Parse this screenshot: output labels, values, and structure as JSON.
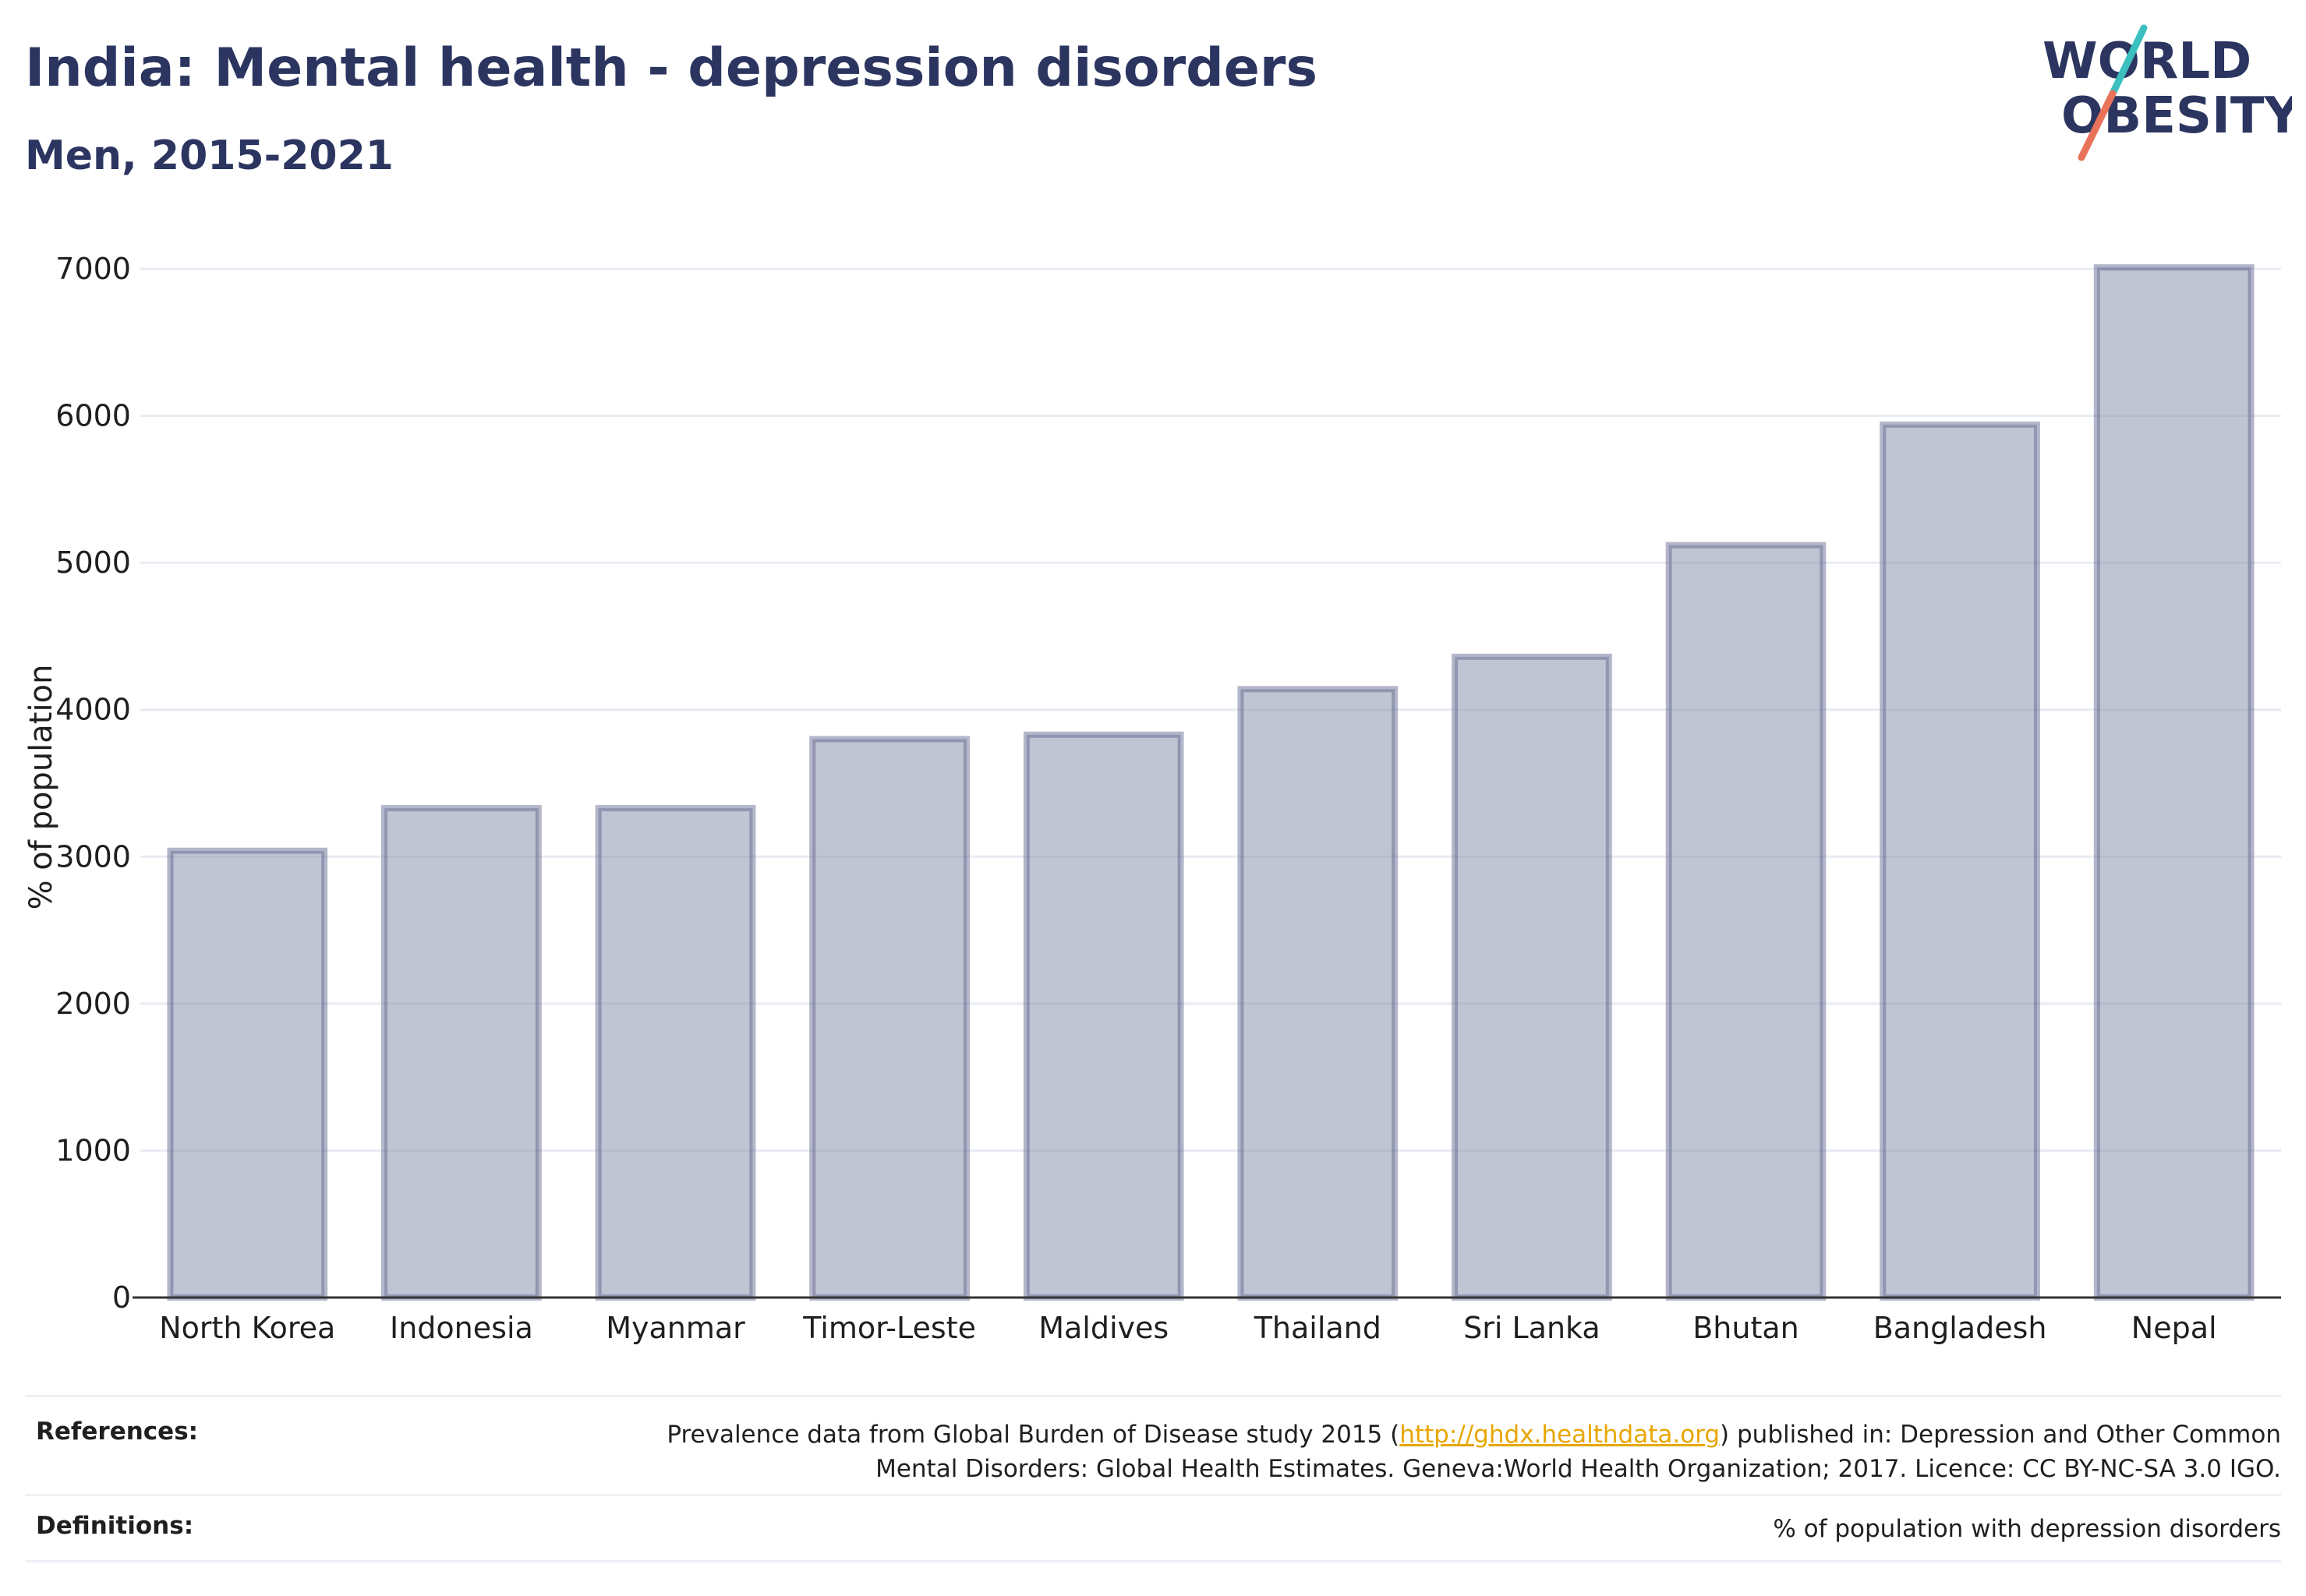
{
  "header": {
    "title": "India: Mental health - depression disorders",
    "subtitle": "Men, 2015-2021"
  },
  "logo": {
    "line1": "WORLD",
    "line2": "OBESITY",
    "text_color": "#2b3560",
    "slash_top_color": "#3bbfbf",
    "slash_bottom_color": "#e8735a"
  },
  "chart_data": {
    "type": "bar",
    "categories": [
      "North Korea",
      "Indonesia",
      "Myanmar",
      "Timor-Leste",
      "Maldives",
      "Thailand",
      "Sri Lanka",
      "Bhutan",
      "Bangladesh",
      "Nepal"
    ],
    "values": [
      3040,
      3330,
      3330,
      3800,
      3830,
      4140,
      4360,
      5120,
      5940,
      7010
    ],
    "ylabel": "% of population",
    "ylim": [
      0,
      7000
    ],
    "yticks": [
      "0",
      "1000",
      "2000",
      "3000",
      "4000",
      "5000",
      "6000",
      "7000"
    ],
    "grid": true,
    "bar_fill": "#8e94ad",
    "bar_stroke": "#59608a"
  },
  "footer": {
    "references_label": "References:",
    "references_text_1": "Prevalence data from Global Burden of Disease study 2015 (",
    "references_link": "http://ghdx.healthdata.org",
    "references_text_2": ") published in: Depression and Other Common",
    "references_text_3": "Mental Disorders: Global Health Estimates. Geneva:World Health Organization; 2017. Licence: CC BY-NC-SA 3.0 IGO.",
    "definitions_label": "Definitions:",
    "definitions_text": "% of population with depression disorders"
  }
}
